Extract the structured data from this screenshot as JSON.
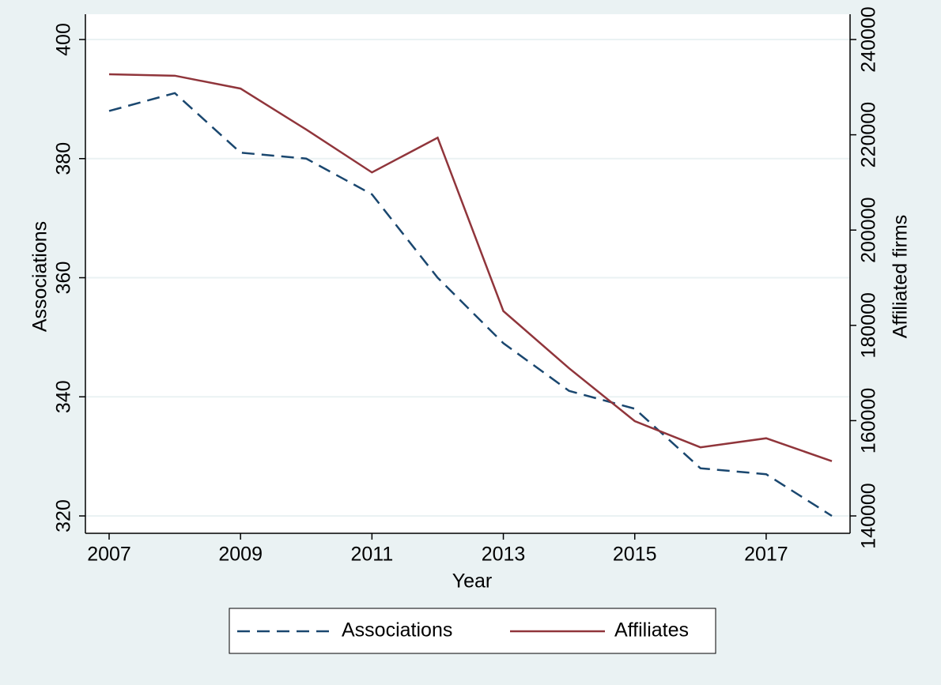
{
  "chart_data": {
    "type": "line",
    "x": [
      2007,
      2008,
      2009,
      2010,
      2011,
      2012,
      2013,
      2014,
      2015,
      2016,
      2017,
      2018
    ],
    "xlim": [
      2007,
      2018
    ],
    "xticks": [
      2007,
      2009,
      2011,
      2013,
      2015,
      2017
    ],
    "xlabel": "Year",
    "ylabel": "Associations",
    "y2label": "Affiliated firms",
    "ylim": [
      320,
      400
    ],
    "yticks": [
      320,
      340,
      360,
      380,
      400
    ],
    "y2lim": [
      140000,
      240000
    ],
    "y2ticks": [
      140000,
      160000,
      180000,
      200000,
      220000,
      240000
    ],
    "grid": true,
    "legend": "bottom",
    "series": [
      {
        "name": "Associations",
        "color": "#1a476f",
        "dash": true,
        "axis": "y",
        "values": [
          388,
          391,
          381,
          380,
          374,
          360,
          349,
          341,
          338,
          328,
          327,
          320
        ]
      },
      {
        "name": "Affiliates",
        "color": "#90353b",
        "dash": false,
        "axis": "y2",
        "values": [
          232700,
          232400,
          229700,
          221100,
          212100,
          219400,
          183000,
          171000,
          159900,
          154400,
          156300,
          151500
        ]
      }
    ]
  }
}
